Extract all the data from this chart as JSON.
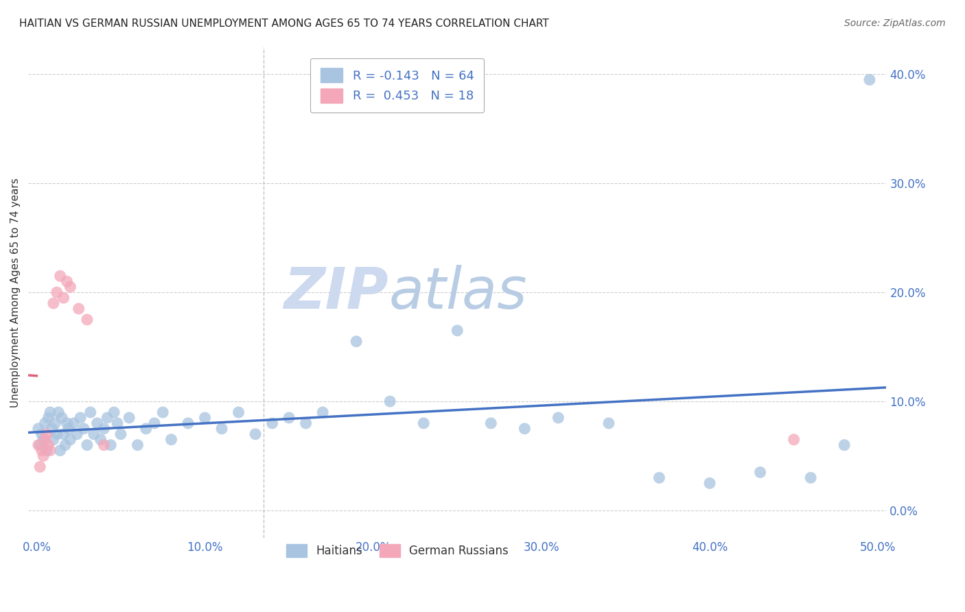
{
  "title": "HAITIAN VS GERMAN RUSSIAN UNEMPLOYMENT AMONG AGES 65 TO 74 YEARS CORRELATION CHART",
  "source": "Source: ZipAtlas.com",
  "ylabel": "Unemployment Among Ages 65 to 74 years",
  "xlim": [
    -0.005,
    0.505
  ],
  "ylim": [
    -0.025,
    0.425
  ],
  "x_ticks": [
    0.0,
    0.1,
    0.2,
    0.3,
    0.4,
    0.5
  ],
  "x_tick_labels": [
    "0.0%",
    "10.0%",
    "20.0%",
    "30.0%",
    "40.0%",
    "50.0%"
  ],
  "y_ticks": [
    0.0,
    0.1,
    0.2,
    0.3,
    0.4
  ],
  "y_tick_labels": [
    "0.0%",
    "10.0%",
    "20.0%",
    "30.0%",
    "40.0%"
  ],
  "haitians_color": "#a8c4e0",
  "german_russians_color": "#f4a7b9",
  "haitians_line_color": "#4472c4",
  "german_russians_line_color": "#e0607a",
  "legend_haitian_label": "R = -0.143   N = 64",
  "legend_gr_label": "R =  0.453   N = 18",
  "haitians_x": [
    0.001,
    0.002,
    0.003,
    0.004,
    0.005,
    0.006,
    0.007,
    0.008,
    0.009,
    0.01,
    0.011,
    0.012,
    0.013,
    0.014,
    0.015,
    0.016,
    0.017,
    0.018,
    0.019,
    0.02,
    0.022,
    0.024,
    0.026,
    0.028,
    0.03,
    0.032,
    0.034,
    0.036,
    0.038,
    0.04,
    0.042,
    0.044,
    0.046,
    0.048,
    0.05,
    0.055,
    0.06,
    0.065,
    0.07,
    0.075,
    0.08,
    0.09,
    0.1,
    0.11,
    0.12,
    0.13,
    0.14,
    0.15,
    0.16,
    0.17,
    0.19,
    0.21,
    0.23,
    0.25,
    0.27,
    0.29,
    0.31,
    0.34,
    0.37,
    0.4,
    0.43,
    0.46,
    0.48,
    0.495
  ],
  "haitians_y": [
    0.075,
    0.06,
    0.07,
    0.065,
    0.08,
    0.055,
    0.085,
    0.09,
    0.075,
    0.065,
    0.08,
    0.07,
    0.09,
    0.055,
    0.085,
    0.07,
    0.06,
    0.08,
    0.075,
    0.065,
    0.08,
    0.07,
    0.085,
    0.075,
    0.06,
    0.09,
    0.07,
    0.08,
    0.065,
    0.075,
    0.085,
    0.06,
    0.09,
    0.08,
    0.07,
    0.085,
    0.06,
    0.075,
    0.08,
    0.09,
    0.065,
    0.08,
    0.085,
    0.075,
    0.09,
    0.07,
    0.08,
    0.085,
    0.08,
    0.09,
    0.155,
    0.1,
    0.08,
    0.165,
    0.08,
    0.075,
    0.085,
    0.08,
    0.03,
    0.025,
    0.035,
    0.03,
    0.06,
    0.395
  ],
  "german_russians_x": [
    0.001,
    0.002,
    0.003,
    0.004,
    0.005,
    0.006,
    0.007,
    0.008,
    0.01,
    0.012,
    0.014,
    0.016,
    0.018,
    0.02,
    0.025,
    0.03,
    0.04,
    0.45
  ],
  "german_russians_y": [
    0.06,
    0.04,
    0.055,
    0.05,
    0.065,
    0.07,
    0.06,
    0.055,
    0.19,
    0.2,
    0.215,
    0.195,
    0.21,
    0.205,
    0.185,
    0.175,
    0.06,
    0.065
  ],
  "dashed_line_x": 0.135,
  "watermark_zip_color": "#ccd9ee",
  "watermark_atlas_color": "#b8cce4"
}
